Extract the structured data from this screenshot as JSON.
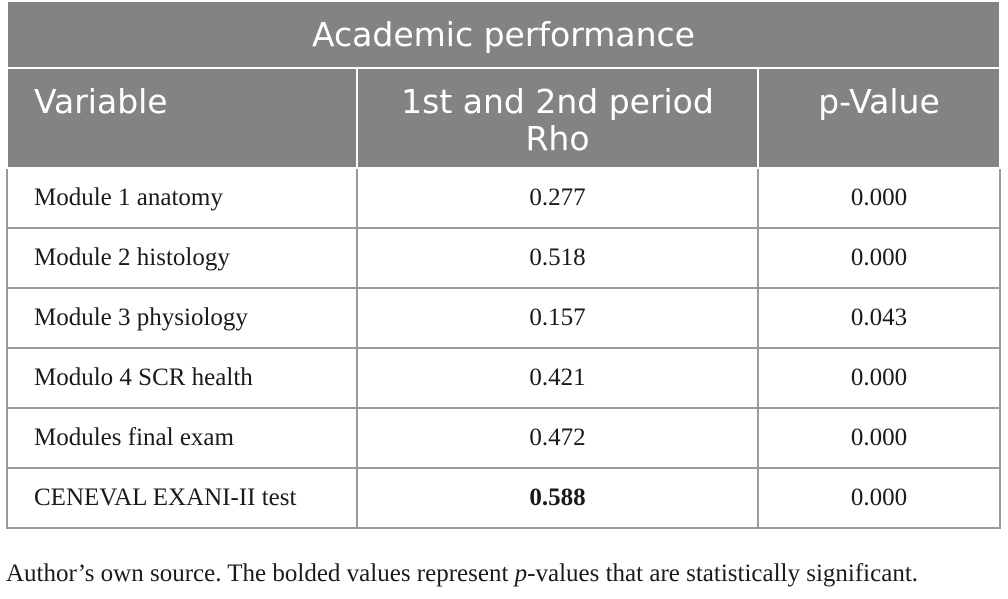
{
  "table": {
    "title": "Academic performance",
    "headers": {
      "variable": "Variable",
      "rho_line1": "1st and 2nd period",
      "rho_line2": "Rho",
      "pvalue": "p-Value"
    },
    "rows": [
      {
        "variable": "Module 1 anatomy",
        "rho": "0.277",
        "p": "0.000",
        "rho_bold": false
      },
      {
        "variable": "Module 2 histology",
        "rho": "0.518",
        "p": "0.000",
        "rho_bold": false
      },
      {
        "variable": "Module 3 physiology",
        "rho": "0.157",
        "p": "0.043",
        "rho_bold": false
      },
      {
        "variable": "Modulo 4 SCR health",
        "rho": "0.421",
        "p": "0.000",
        "rho_bold": false
      },
      {
        "variable": "Modules final exam",
        "rho": "0.472",
        "p": "0.000",
        "rho_bold": false
      },
      {
        "variable": "CENEVAL EXANI-II test",
        "rho": "0.588",
        "p": "0.000",
        "rho_bold": true
      }
    ]
  },
  "footnote": {
    "before_italic": "Author’s own source. The bolded values represent ",
    "italic": "p",
    "after_italic": "-values that are statistically significant."
  },
  "colors": {
    "header_bg": "#838383",
    "header_text": "#ffffff",
    "grid": "#9a9a9a"
  }
}
